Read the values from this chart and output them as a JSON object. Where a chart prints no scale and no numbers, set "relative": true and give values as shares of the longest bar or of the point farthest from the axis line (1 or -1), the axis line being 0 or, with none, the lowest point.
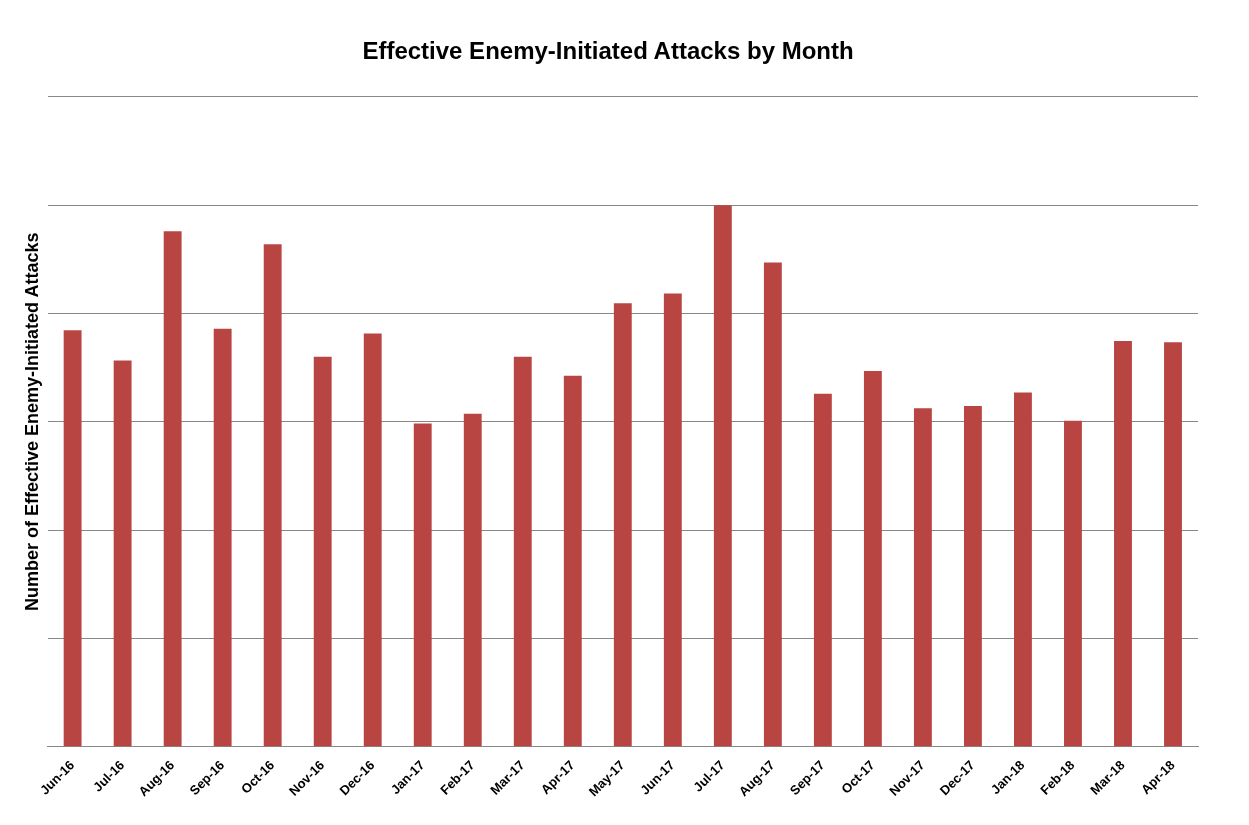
{
  "chart_data": {
    "type": "bar",
    "title": "Effective Enemy-Initiated Attacks by Month",
    "ylabel": "Number of Effective Enemy-Initiated Attacks",
    "relative": true,
    "grid": "y",
    "legend": false,
    "color": "#b94543",
    "categories": [
      "Jun-16",
      "Jul-16",
      "Aug-16",
      "Sep-16",
      "Oct-16",
      "Nov-16",
      "Dec-16",
      "Jan-17",
      "Feb-17",
      "Mar-17",
      "Apr-17",
      "May-17",
      "Jun-17",
      "Jul-17",
      "Aug-17",
      "Sep-17",
      "Oct-17",
      "Nov-17",
      "Dec-17",
      "Jan-18",
      "Feb-18",
      "Mar-18",
      "Apr-18"
    ],
    "values": [
      0.769,
      0.713,
      0.952,
      0.772,
      0.928,
      0.72,
      0.763,
      0.597,
      0.615,
      0.72,
      0.685,
      0.819,
      0.837,
      1,
      0.894,
      0.652,
      0.694,
      0.625,
      0.629,
      0.654,
      0.602,
      0.749,
      0.747
    ]
  }
}
